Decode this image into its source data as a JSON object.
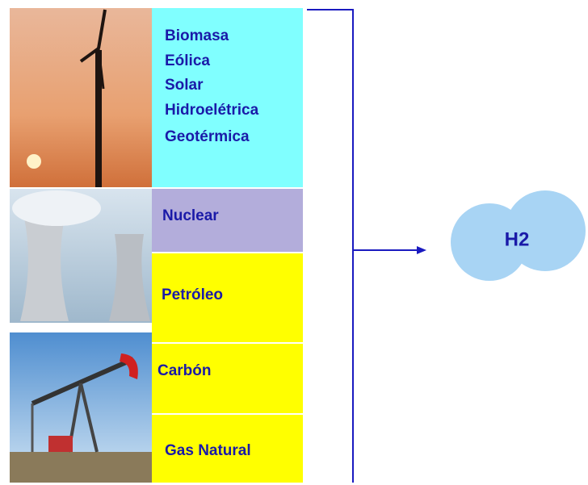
{
  "sources": {
    "renewables": [
      "Biomasa",
      "Eólica",
      "Solar",
      "Hidroelétrica",
      "Geotérmica"
    ],
    "nuclear": "Nuclear",
    "fossil": [
      "Petróleo",
      "Carbón",
      "Gas Natural"
    ]
  },
  "product": "H2"
}
